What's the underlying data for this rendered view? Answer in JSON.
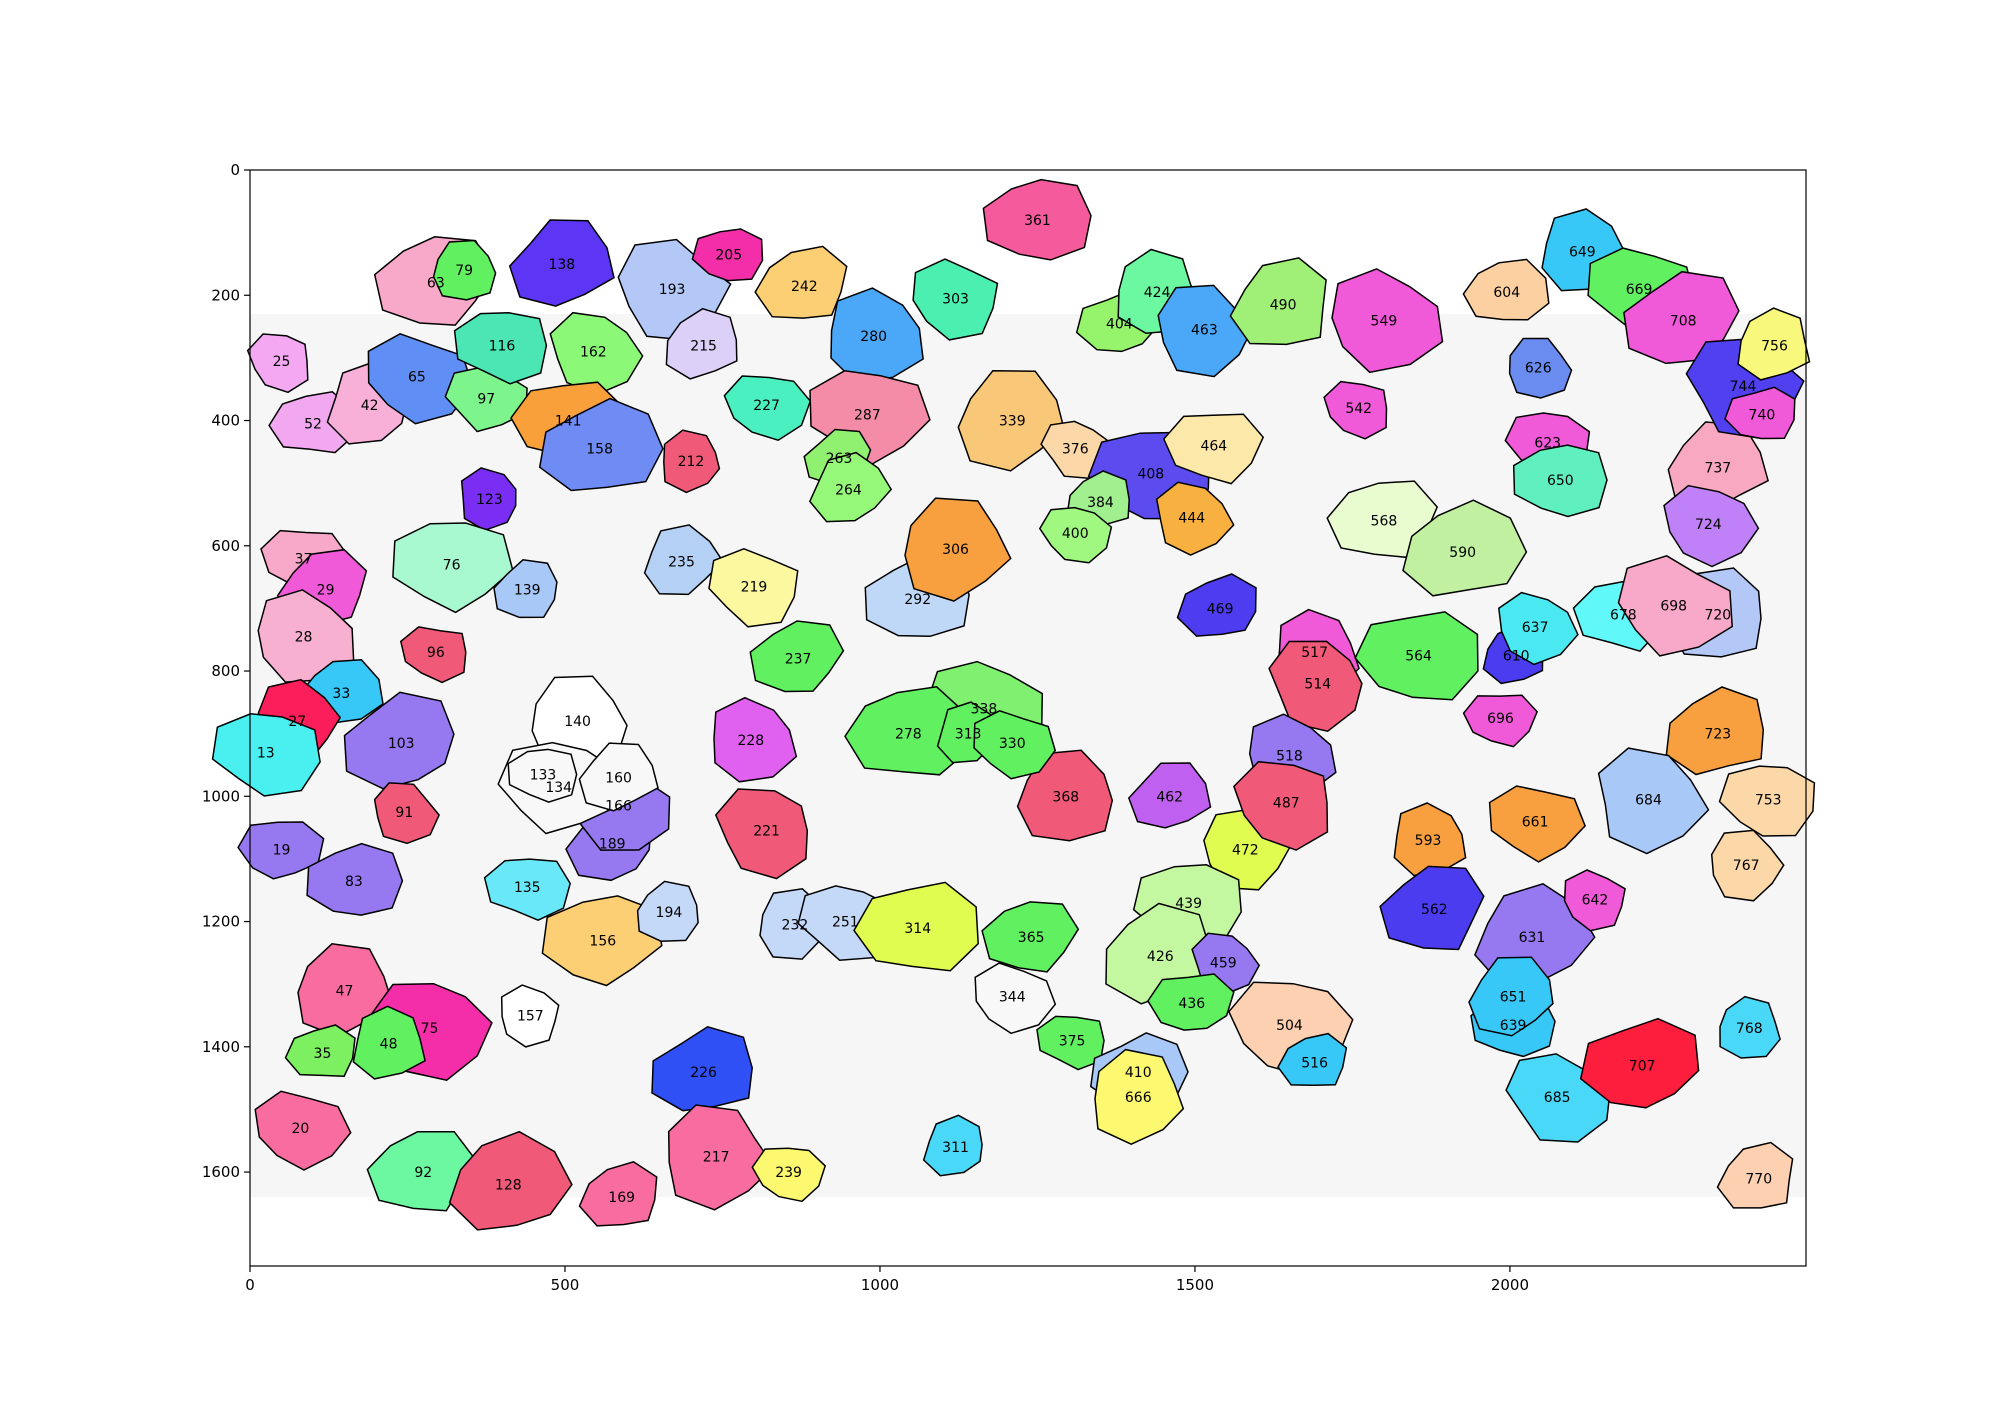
{
  "chart_data": {
    "type": "heatmap",
    "title": "",
    "xlabel": "",
    "ylabel": "",
    "xlim": [
      0,
      2470
    ],
    "ylim": [
      1750,
      0
    ],
    "x_ticks": [
      0,
      500,
      1000,
      1500,
      2000
    ],
    "y_ticks": [
      0,
      200,
      400,
      600,
      800,
      1000,
      1200,
      1400,
      1600
    ],
    "grid": false,
    "legend": "none",
    "colors": {
      "boundary": "#000000",
      "background": "#ffffff"
    },
    "grains": [
      {
        "id": "25",
        "x": 50,
        "y": 305,
        "color": "#f4a8f2"
      },
      {
        "id": "52",
        "x": 100,
        "y": 405,
        "color": "#f2a8f0"
      },
      {
        "id": "42",
        "x": 190,
        "y": 375,
        "color": "#f8b0d8"
      },
      {
        "id": "65",
        "x": 265,
        "y": 330,
        "color": "#5f8ef4"
      },
      {
        "id": "63",
        "x": 295,
        "y": 180,
        "color": "#f8a8c8"
      },
      {
        "id": "79",
        "x": 340,
        "y": 160,
        "color": "#60f060"
      },
      {
        "id": "97",
        "x": 375,
        "y": 365,
        "color": "#7ef48c"
      },
      {
        "id": "116",
        "x": 400,
        "y": 280,
        "color": "#4be6b4"
      },
      {
        "id": "138",
        "x": 495,
        "y": 150,
        "color": "#5c35f5"
      },
      {
        "id": "193",
        "x": 670,
        "y": 190,
        "color": "#b4c8f8"
      },
      {
        "id": "205",
        "x": 760,
        "y": 135,
        "color": "#f42ea8"
      },
      {
        "id": "215",
        "x": 720,
        "y": 280,
        "color": "#dcd0f8"
      },
      {
        "id": "162",
        "x": 545,
        "y": 290,
        "color": "#8cf878"
      },
      {
        "id": "141",
        "x": 505,
        "y": 400,
        "color": "#f9a03a"
      },
      {
        "id": "158",
        "x": 555,
        "y": 445,
        "color": "#6e8cf4"
      },
      {
        "id": "212",
        "x": 700,
        "y": 465,
        "color": "#f05a78"
      },
      {
        "id": "227",
        "x": 820,
        "y": 375,
        "color": "#4bf0c0"
      },
      {
        "id": "242",
        "x": 880,
        "y": 185,
        "color": "#fccf74"
      },
      {
        "id": "280",
        "x": 990,
        "y": 265,
        "color": "#4ba8f8"
      },
      {
        "id": "287",
        "x": 980,
        "y": 390,
        "color": "#f48ca8"
      },
      {
        "id": "263",
        "x": 935,
        "y": 460,
        "color": "#90f070"
      },
      {
        "id": "264",
        "x": 950,
        "y": 510,
        "color": "#96f878"
      },
      {
        "id": "303",
        "x": 1120,
        "y": 205,
        "color": "#4bf0b0"
      },
      {
        "id": "361",
        "x": 1250,
        "y": 80,
        "color": "#f45a9c"
      },
      {
        "id": "339",
        "x": 1210,
        "y": 400,
        "color": "#f8c878"
      },
      {
        "id": "376",
        "x": 1310,
        "y": 445,
        "color": "#fcd8a8"
      },
      {
        "id": "404",
        "x": 1380,
        "y": 245,
        "color": "#96f46c"
      },
      {
        "id": "424",
        "x": 1440,
        "y": 195,
        "color": "#6cf8a0"
      },
      {
        "id": "463",
        "x": 1515,
        "y": 255,
        "color": "#4ba8f8"
      },
      {
        "id": "408",
        "x": 1430,
        "y": 485,
        "color": "#5c4cf0"
      },
      {
        "id": "384",
        "x": 1350,
        "y": 530,
        "color": "#a0f090"
      },
      {
        "id": "444",
        "x": 1495,
        "y": 555,
        "color": "#f8b040"
      },
      {
        "id": "464",
        "x": 1530,
        "y": 440,
        "color": "#fce8a8"
      },
      {
        "id": "490",
        "x": 1640,
        "y": 215,
        "color": "#a0f078"
      },
      {
        "id": "549",
        "x": 1800,
        "y": 240,
        "color": "#f05ad8"
      },
      {
        "id": "542",
        "x": 1760,
        "y": 380,
        "color": "#f05ad8"
      },
      {
        "id": "604",
        "x": 1995,
        "y": 195,
        "color": "#fcd0a0"
      },
      {
        "id": "649",
        "x": 2115,
        "y": 130,
        "color": "#38c8f8"
      },
      {
        "id": "669",
        "x": 2205,
        "y": 190,
        "color": "#60f060"
      },
      {
        "id": "708",
        "x": 2275,
        "y": 240,
        "color": "#f05ad8"
      },
      {
        "id": "626",
        "x": 2045,
        "y": 315,
        "color": "#6a8cf0"
      },
      {
        "id": "623",
        "x": 2060,
        "y": 435,
        "color": "#f05ad8"
      },
      {
        "id": "650",
        "x": 2080,
        "y": 495,
        "color": "#60f0c0"
      },
      {
        "id": "737",
        "x": 2330,
        "y": 475,
        "color": "#f8a8c0"
      },
      {
        "id": "744",
        "x": 2370,
        "y": 345,
        "color": "#5040f0"
      },
      {
        "id": "740",
        "x": 2400,
        "y": 390,
        "color": "#f05ad8"
      },
      {
        "id": "756",
        "x": 2420,
        "y": 280,
        "color": "#f8f87c"
      },
      {
        "id": "724",
        "x": 2315,
        "y": 565,
        "color": "#c080f8"
      },
      {
        "id": "568",
        "x": 1800,
        "y": 560,
        "color": "#e8fcd0"
      },
      {
        "id": "590",
        "x": 1925,
        "y": 610,
        "color": "#c0f0a0"
      },
      {
        "id": "123",
        "x": 380,
        "y": 525,
        "color": "#7a2ef4"
      },
      {
        "id": "37",
        "x": 85,
        "y": 620,
        "color": "#f8a8c8"
      },
      {
        "id": "29",
        "x": 120,
        "y": 670,
        "color": "#f05ad8"
      },
      {
        "id": "28",
        "x": 85,
        "y": 745,
        "color": "#f8b0d0"
      },
      {
        "id": "76",
        "x": 320,
        "y": 630,
        "color": "#a8f8d0"
      },
      {
        "id": "139",
        "x": 440,
        "y": 670,
        "color": "#a8c8f8"
      },
      {
        "id": "235",
        "x": 685,
        "y": 625,
        "color": "#b4d0f4"
      },
      {
        "id": "219",
        "x": 800,
        "y": 665,
        "color": "#fcf8a0"
      },
      {
        "id": "292",
        "x": 1060,
        "y": 685,
        "color": "#c0d8f8"
      },
      {
        "id": "306",
        "x": 1120,
        "y": 605,
        "color": "#f8a040"
      },
      {
        "id": "400",
        "x": 1310,
        "y": 580,
        "color": "#a0f880"
      },
      {
        "id": "469",
        "x": 1540,
        "y": 700,
        "color": "#4e3cf0"
      },
      {
        "id": "517",
        "x": 1690,
        "y": 770,
        "color": "#f05ad8"
      },
      {
        "id": "514",
        "x": 1695,
        "y": 820,
        "color": "#f05a78"
      },
      {
        "id": "564",
        "x": 1855,
        "y": 775,
        "color": "#60f060"
      },
      {
        "id": "610",
        "x": 2010,
        "y": 775,
        "color": "#4c3cf0"
      },
      {
        "id": "637",
        "x": 2040,
        "y": 730,
        "color": "#4ae8f0"
      },
      {
        "id": "678",
        "x": 2180,
        "y": 710,
        "color": "#60f8f8"
      },
      {
        "id": "720",
        "x": 2330,
        "y": 710,
        "color": "#b4c8f8"
      },
      {
        "id": "698",
        "x": 2260,
        "y": 695,
        "color": "#f8a8c8"
      },
      {
        "id": "96",
        "x": 295,
        "y": 770,
        "color": "#f05a78"
      },
      {
        "id": "33",
        "x": 145,
        "y": 835,
        "color": "#38c8f8"
      },
      {
        "id": "27",
        "x": 75,
        "y": 880,
        "color": "#fc1e5a"
      },
      {
        "id": "13",
        "x": 25,
        "y": 930,
        "color": "#4af0f0"
      },
      {
        "id": "103",
        "x": 240,
        "y": 915,
        "color": "#9678f0"
      },
      {
        "id": "91",
        "x": 245,
        "y": 1025,
        "color": "#f05a78"
      },
      {
        "id": "19",
        "x": 50,
        "y": 1085,
        "color": "#9678f0"
      },
      {
        "id": "83",
        "x": 165,
        "y": 1135,
        "color": "#9678f0"
      },
      {
        "id": "47",
        "x": 150,
        "y": 1310,
        "color": "#f86ca0"
      },
      {
        "id": "75",
        "x": 285,
        "y": 1370,
        "color": "#f42ea8"
      },
      {
        "id": "35",
        "x": 115,
        "y": 1410,
        "color": "#7cf060"
      },
      {
        "id": "48",
        "x": 220,
        "y": 1395,
        "color": "#60f060"
      },
      {
        "id": "20",
        "x": 80,
        "y": 1530,
        "color": "#f86ca0"
      },
      {
        "id": "92",
        "x": 275,
        "y": 1600,
        "color": "#6cf8a0"
      },
      {
        "id": "128",
        "x": 410,
        "y": 1620,
        "color": "#f05a78"
      },
      {
        "id": "157",
        "x": 445,
        "y": 1350,
        "color": "#ffffff"
      },
      {
        "id": "135",
        "x": 440,
        "y": 1145,
        "color": "#68e8f8"
      },
      {
        "id": "189",
        "x": 575,
        "y": 1075,
        "color": "#9678f0"
      },
      {
        "id": "166",
        "x": 585,
        "y": 1015,
        "color": "#9678f0"
      },
      {
        "id": "156",
        "x": 560,
        "y": 1230,
        "color": "#fccf74"
      },
      {
        "id": "194",
        "x": 665,
        "y": 1185,
        "color": "#c4d8f8"
      },
      {
        "id": "232",
        "x": 865,
        "y": 1205,
        "color": "#c4d8f8"
      },
      {
        "id": "251",
        "x": 945,
        "y": 1200,
        "color": "#c4d8f8"
      },
      {
        "id": "226",
        "x": 720,
        "y": 1440,
        "color": "#2e50f4"
      },
      {
        "id": "217",
        "x": 740,
        "y": 1575,
        "color": "#f86ca0"
      },
      {
        "id": "239",
        "x": 855,
        "y": 1600,
        "color": "#fcf870"
      },
      {
        "id": "169",
        "x": 590,
        "y": 1640,
        "color": "#f86ca0"
      },
      {
        "id": "228",
        "x": 795,
        "y": 910,
        "color": "#e060f0"
      },
      {
        "id": "221",
        "x": 820,
        "y": 1055,
        "color": "#f05a78"
      },
      {
        "id": "314",
        "x": 1060,
        "y": 1210,
        "color": "#e0fc50"
      },
      {
        "id": "311",
        "x": 1120,
        "y": 1560,
        "color": "#4ad8f8"
      },
      {
        "id": "344",
        "x": 1210,
        "y": 1320,
        "color": "#f8f8f8"
      },
      {
        "id": "365",
        "x": 1240,
        "y": 1225,
        "color": "#60f060"
      },
      {
        "id": "368",
        "x": 1295,
        "y": 1000,
        "color": "#f05a78"
      },
      {
        "id": "338",
        "x": 1165,
        "y": 860,
        "color": "#80f070"
      },
      {
        "id": "375",
        "x": 1305,
        "y": 1390,
        "color": "#60f060"
      },
      {
        "id": "462",
        "x": 1460,
        "y": 1000,
        "color": "#c060f0"
      },
      {
        "id": "472",
        "x": 1580,
        "y": 1085,
        "color": "#e0fc50"
      },
      {
        "id": "439",
        "x": 1490,
        "y": 1170,
        "color": "#c4f8a0"
      },
      {
        "id": "426",
        "x": 1445,
        "y": 1255,
        "color": "#c4f8a0"
      },
      {
        "id": "459",
        "x": 1545,
        "y": 1265,
        "color": "#9678f0"
      },
      {
        "id": "436",
        "x": 1495,
        "y": 1330,
        "color": "#60f060"
      },
      {
        "id": "410",
        "x": 1410,
        "y": 1440,
        "color": "#a8c8f8"
      },
      {
        "id": "666",
        "x": 1410,
        "y": 1480,
        "color": "#fcf870"
      },
      {
        "id": "504",
        "x": 1650,
        "y": 1365,
        "color": "#fcd0b0"
      },
      {
        "id": "516",
        "x": 1690,
        "y": 1425,
        "color": "#38c8f8"
      },
      {
        "id": "593",
        "x": 1870,
        "y": 1070,
        "color": "#f8a040"
      },
      {
        "id": "661",
        "x": 2040,
        "y": 1040,
        "color": "#f8a040"
      },
      {
        "id": "562",
        "x": 1880,
        "y": 1180,
        "color": "#4c3cf0"
      },
      {
        "id": "631",
        "x": 2035,
        "y": 1225,
        "color": "#9678f0"
      },
      {
        "id": "642",
        "x": 2135,
        "y": 1165,
        "color": "#f05ad8"
      },
      {
        "id": "639",
        "x": 2005,
        "y": 1365,
        "color": "#38c8f8"
      },
      {
        "id": "651",
        "x": 2005,
        "y": 1320,
        "color": "#38c8f8"
      },
      {
        "id": "685",
        "x": 2075,
        "y": 1480,
        "color": "#4ad8f8"
      },
      {
        "id": "707",
        "x": 2210,
        "y": 1430,
        "color": "#fc1e3c"
      },
      {
        "id": "768",
        "x": 2380,
        "y": 1370,
        "color": "#4ad8f8"
      },
      {
        "id": "767",
        "x": 2375,
        "y": 1110,
        "color": "#fcd8a8"
      },
      {
        "id": "753",
        "x": 2410,
        "y": 1005,
        "color": "#fcd8a8"
      },
      {
        "id": "723",
        "x": 2330,
        "y": 900,
        "color": "#f8a040"
      },
      {
        "id": "684",
        "x": 2220,
        "y": 1005,
        "color": "#a8c8f8"
      },
      {
        "id": "696",
        "x": 1985,
        "y": 875,
        "color": "#f05ad8"
      },
      {
        "id": "770",
        "x": 2395,
        "y": 1610,
        "color": "#fcd0b0"
      },
      {
        "id": "518",
        "x": 1650,
        "y": 935,
        "color": "#9678f0"
      },
      {
        "id": "487",
        "x": 1645,
        "y": 1010,
        "color": "#f05a78"
      },
      {
        "id": "278",
        "x": 1045,
        "y": 900,
        "color": "#60f060"
      },
      {
        "id": "313",
        "x": 1140,
        "y": 900,
        "color": "#60f060"
      },
      {
        "id": "330",
        "x": 1210,
        "y": 915,
        "color": "#60f060"
      },
      {
        "id": "237",
        "x": 870,
        "y": 780,
        "color": "#60f060"
      },
      {
        "id": "140",
        "x": 520,
        "y": 880,
        "color": "#ffffff"
      },
      {
        "id": "134",
        "x": 490,
        "y": 985,
        "color": "#f8f8f8"
      },
      {
        "id": "133",
        "x": 465,
        "y": 965,
        "color": "#f8f8f8"
      },
      {
        "id": "160",
        "x": 585,
        "y": 970,
        "color": "#f8f8f8"
      }
    ]
  }
}
